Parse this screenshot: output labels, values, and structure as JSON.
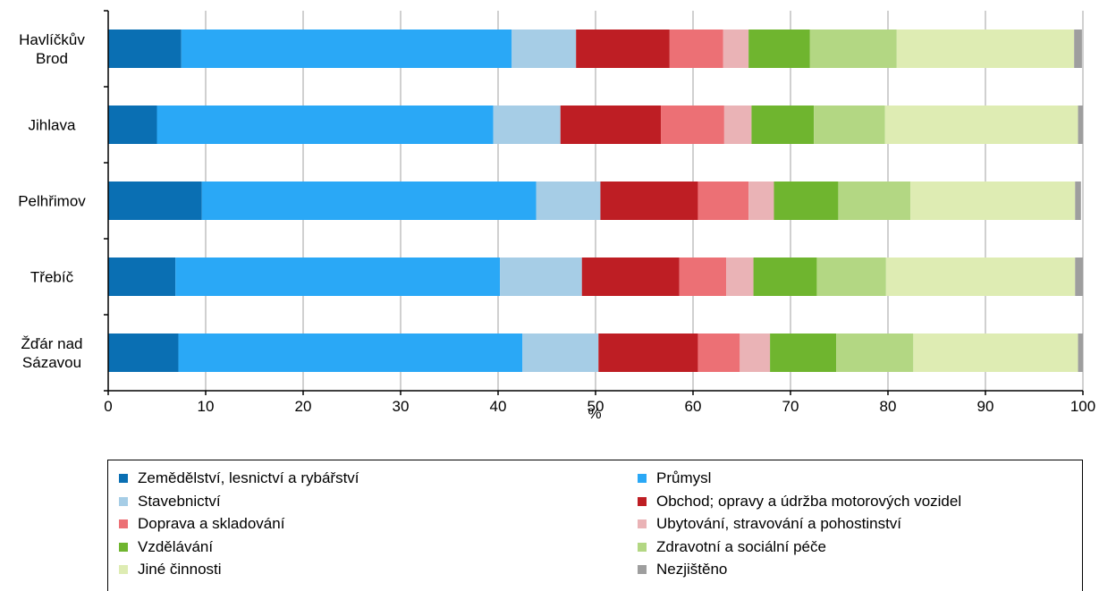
{
  "chart_data": {
    "type": "bar",
    "orientation": "horizontal",
    "stacked": true,
    "title": "",
    "xlabel": "%",
    "ylabel": "",
    "xlim": [
      0,
      100
    ],
    "x_ticks": [
      "0",
      "10",
      "20",
      "30",
      "40",
      "50",
      "60",
      "70",
      "80",
      "90",
      "100"
    ],
    "grid": "vertical",
    "legend_position": "bottom",
    "categories": [
      "Havlíčkův Brod",
      "Jihlava",
      "Pelhřimov",
      "Třebíč",
      "Žďár nad Sázavou"
    ],
    "category_lines": [
      [
        "Havlíčkův",
        "Brod"
      ],
      [
        "Jihlava"
      ],
      [
        "Pelhřimov"
      ],
      [
        "Třebíč"
      ],
      [
        "Žďár nad",
        "Sázavou"
      ]
    ],
    "series": [
      {
        "name": "Zemědělství, lesnictví a rybářství",
        "color": "#0a6fb3",
        "values": [
          7.5,
          5.0,
          9.6,
          6.9,
          7.2
        ]
      },
      {
        "name": "Průmysl",
        "color": "#2aa8f6",
        "values": [
          33.9,
          34.5,
          34.3,
          33.3,
          35.3
        ]
      },
      {
        "name": "Stavebnictví",
        "color": "#a6cde6",
        "values": [
          6.6,
          6.9,
          6.6,
          8.4,
          7.8
        ]
      },
      {
        "name": "Obchod; opravy a údržba motorových vozidel",
        "color": "#be1e24",
        "values": [
          9.6,
          10.3,
          10.0,
          10.0,
          10.2
        ]
      },
      {
        "name": "Doprava a skladování",
        "color": "#ec7075",
        "values": [
          5.5,
          6.5,
          5.2,
          4.8,
          4.3
        ]
      },
      {
        "name": "Ubytování, stravování a pohostinství",
        "color": "#eab3b6",
        "values": [
          2.6,
          2.8,
          2.6,
          2.8,
          3.1
        ]
      },
      {
        "name": "Vzdělávání",
        "color": "#6fb52f",
        "values": [
          6.3,
          6.4,
          6.6,
          6.5,
          6.8
        ]
      },
      {
        "name": "Zdravotní a sociální péče",
        "color": "#b3d783",
        "values": [
          8.9,
          7.3,
          7.4,
          7.1,
          7.9
        ]
      },
      {
        "name": "Jiné činnosti",
        "color": "#deecb3",
        "values": [
          18.2,
          19.8,
          16.9,
          19.4,
          16.9
        ]
      },
      {
        "name": "Nezjištěno",
        "color": "#9e9e9e",
        "values": [
          0.8,
          0.5,
          0.6,
          0.8,
          0.5
        ]
      }
    ]
  }
}
